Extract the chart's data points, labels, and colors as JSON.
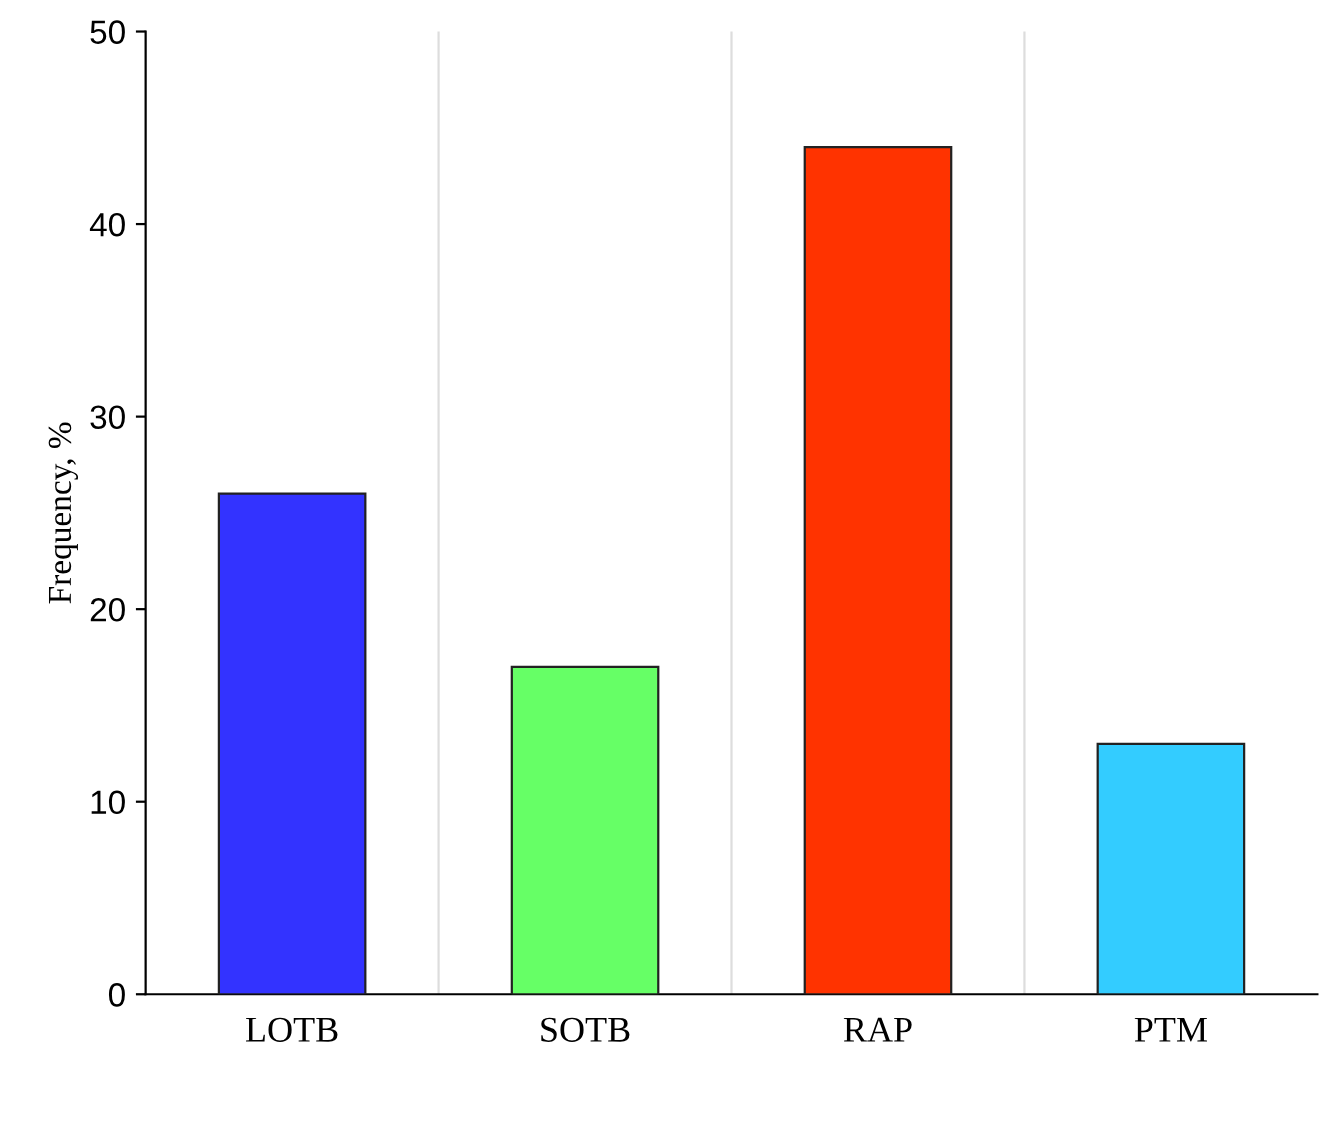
{
  "chart_data": {
    "type": "bar",
    "ylabel": "Frequency, %",
    "categories": [
      "LOTB",
      "SOTB",
      "RAP",
      "PTM"
    ],
    "values": [
      26,
      17,
      44,
      13
    ],
    "colors": [
      "#3333ff",
      "#66ff66",
      "#ff3300",
      "#33ccff"
    ],
    "ylim": [
      0,
      50
    ],
    "yticks": [
      0,
      10,
      20,
      30,
      40,
      50
    ],
    "grid": "x"
  }
}
